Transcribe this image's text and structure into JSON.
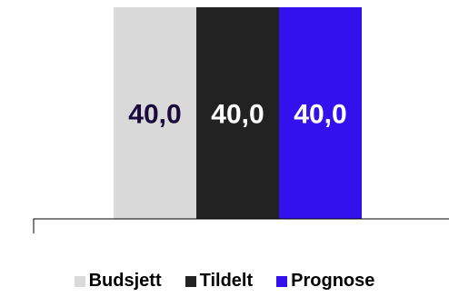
{
  "chart_data": {
    "type": "bar",
    "categories": [
      ""
    ],
    "series": [
      {
        "name": "Budsjett",
        "values": [
          40.0
        ],
        "label": "40,0",
        "color": "#d9d9d9"
      },
      {
        "name": "Tildelt",
        "values": [
          40.0
        ],
        "label": "40,0",
        "color": "#222222"
      },
      {
        "name": "Prognose",
        "values": [
          40.0
        ],
        "label": "40,0",
        "color": "#3311ee"
      }
    ],
    "label_colors": [
      "#1a0a3c",
      "#ffffff",
      "#ffffff"
    ],
    "axis_color": "#000000",
    "ylim": [
      0,
      40.0
    ],
    "grid": false,
    "legend_position": "bottom"
  }
}
